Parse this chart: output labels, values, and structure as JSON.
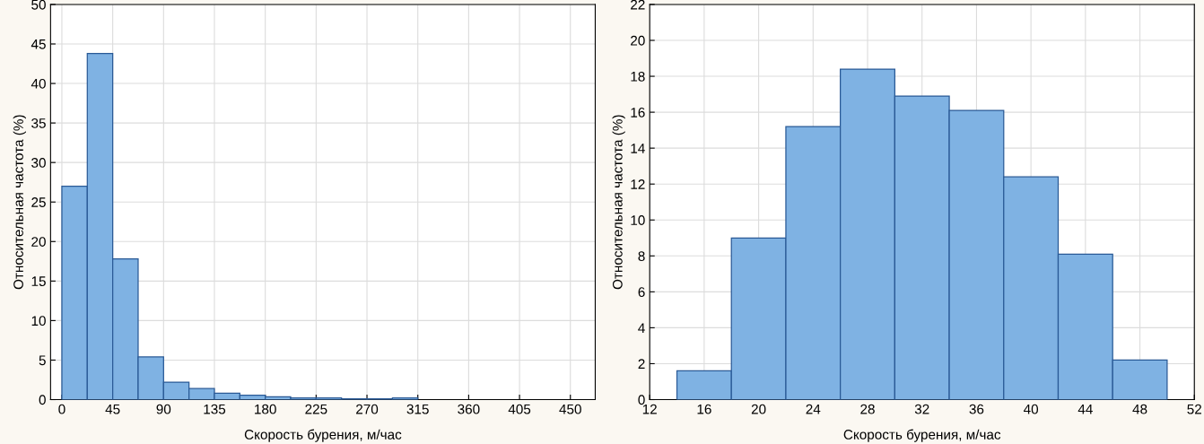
{
  "chart_data": [
    {
      "type": "histogram",
      "xlabel": "Скорость бурения, м/час",
      "ylabel": "Относительная частота (%)",
      "bins": [
        0,
        22.5,
        45,
        67.5,
        90,
        112.5,
        135,
        157.5,
        180,
        202.5,
        225,
        247.5,
        270,
        292.5,
        315
      ],
      "values": [
        27,
        43.8,
        17.8,
        5.4,
        2.2,
        1.4,
        0.8,
        0.55,
        0.35,
        0.2,
        0.2,
        0.1,
        0.1,
        0.2
      ],
      "color": "#7fb2e3",
      "xlim": [
        -10,
        472
      ],
      "ylim": [
        0,
        50
      ],
      "xticks": [
        0,
        45,
        90,
        135,
        180,
        225,
        270,
        315,
        360,
        405,
        450
      ],
      "yticks": [
        0,
        5,
        10,
        15,
        20,
        25,
        30,
        35,
        40,
        45,
        50
      ],
      "grid": true
    },
    {
      "type": "histogram",
      "xlabel": "Скорость бурения, м/час",
      "ylabel": "Относительная частота (%)",
      "bins": [
        14,
        18,
        22,
        26,
        30,
        34,
        38,
        42,
        46,
        50
      ],
      "values": [
        1.6,
        9.0,
        15.2,
        18.4,
        16.9,
        16.1,
        12.4,
        8.1,
        2.2
      ],
      "color": "#7fb2e3",
      "xlim": [
        12,
        52
      ],
      "ylim": [
        0,
        22
      ],
      "xticks": [
        12,
        16,
        20,
        24,
        28,
        32,
        36,
        40,
        44,
        48,
        52
      ],
      "yticks": [
        0,
        2,
        4,
        6,
        8,
        10,
        12,
        14,
        16,
        18,
        20,
        22
      ],
      "grid": true
    }
  ]
}
